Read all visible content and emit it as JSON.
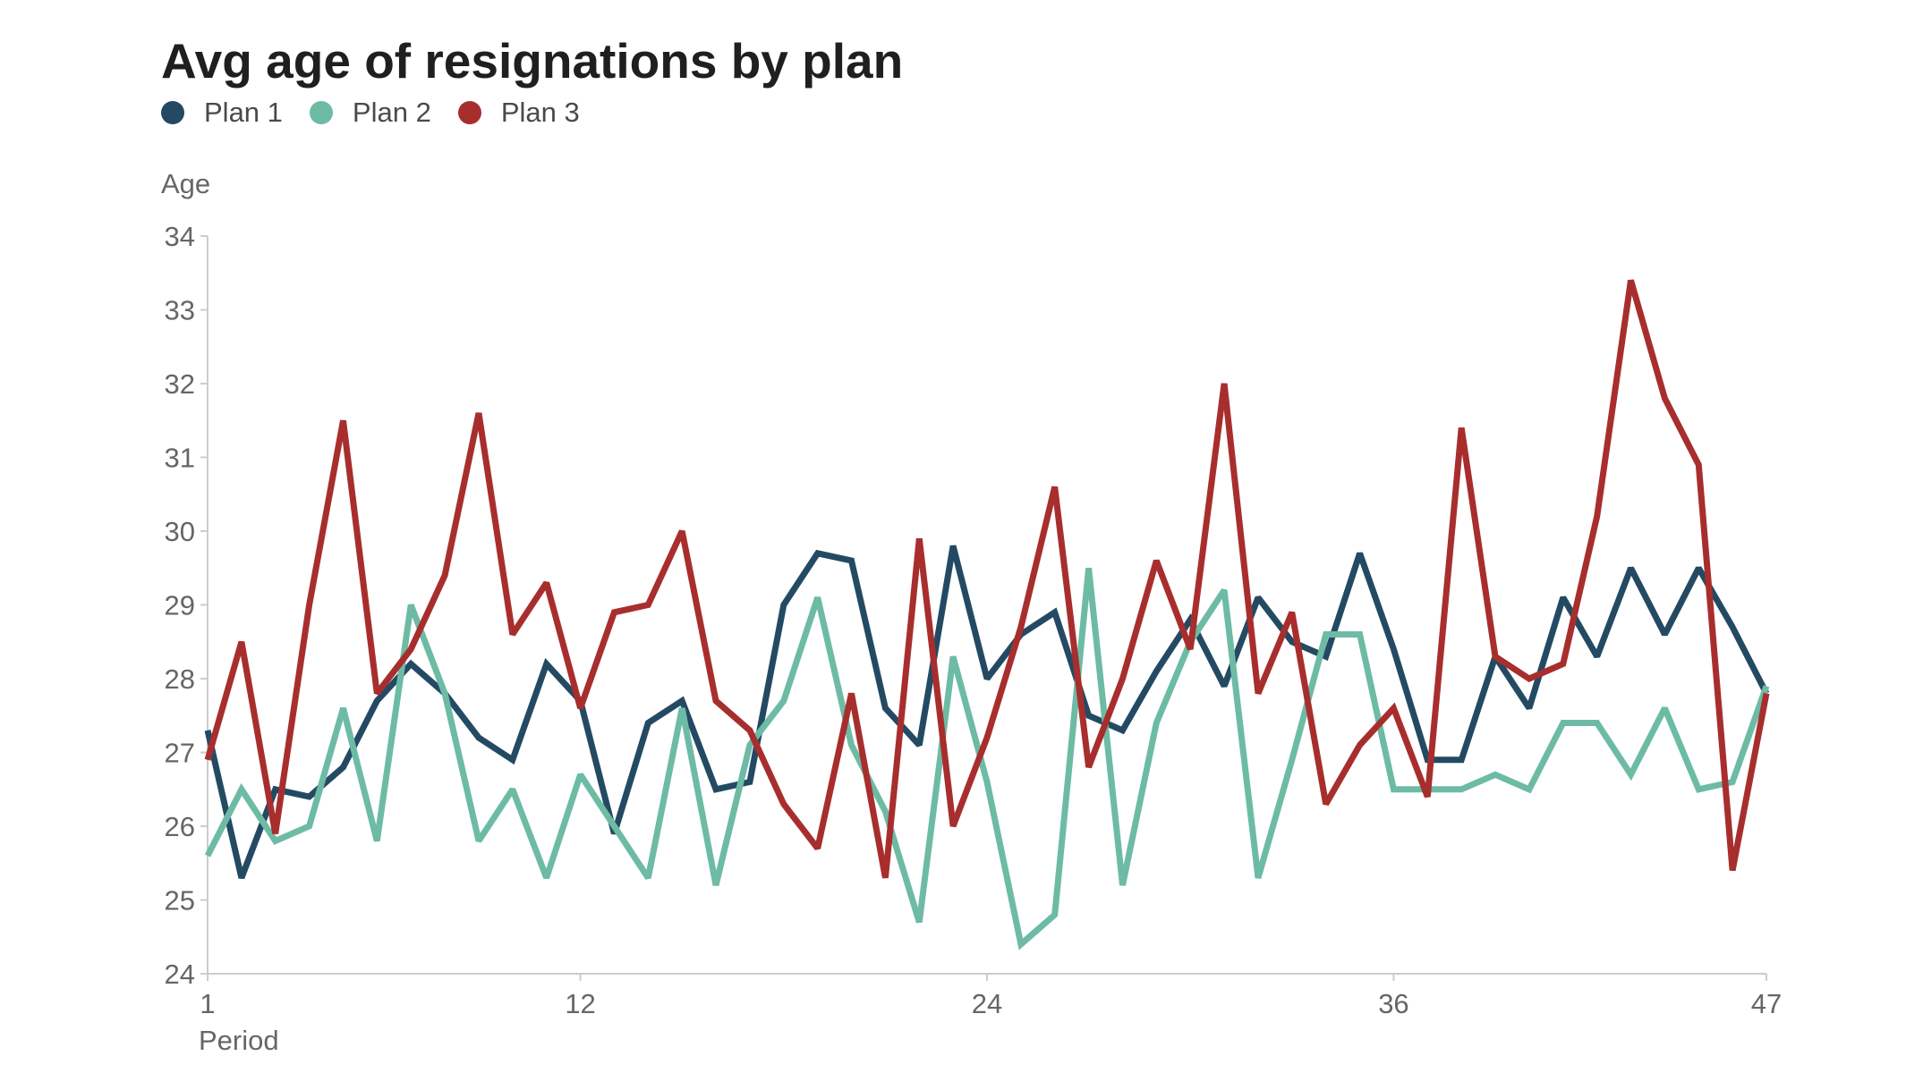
{
  "chart_data": {
    "type": "line",
    "title": "Avg age of resignations by plan",
    "xlabel": "Period",
    "ylabel": "Age",
    "x_ticks": [
      1,
      12,
      24,
      36,
      47
    ],
    "y_ticks": [
      24,
      25,
      26,
      27,
      28,
      29,
      30,
      31,
      32,
      33,
      34
    ],
    "xlim": [
      1,
      47
    ],
    "ylim": [
      24,
      34
    ],
    "legend_position": "top-left",
    "grid": false,
    "x": [
      1,
      2,
      3,
      4,
      5,
      6,
      7,
      8,
      9,
      10,
      11,
      12,
      13,
      14,
      15,
      16,
      17,
      18,
      19,
      20,
      21,
      22,
      23,
      24,
      25,
      26,
      27,
      28,
      29,
      30,
      31,
      32,
      33,
      34,
      35,
      36,
      37,
      38,
      39,
      40,
      41,
      42,
      43,
      44,
      45,
      46,
      47
    ],
    "series": [
      {
        "name": "Plan 1",
        "color": "#244a63",
        "values": [
          27.3,
          25.3,
          26.5,
          26.4,
          26.8,
          27.7,
          28.2,
          27.8,
          27.2,
          26.9,
          28.2,
          27.7,
          25.9,
          27.4,
          27.7,
          26.5,
          26.6,
          29.0,
          29.7,
          29.6,
          27.6,
          27.1,
          29.8,
          28.0,
          28.6,
          28.9,
          27.5,
          27.3,
          28.1,
          28.8,
          27.9,
          29.1,
          28.5,
          28.3,
          29.7,
          28.4,
          26.9,
          26.9,
          28.3,
          27.6,
          29.1,
          28.3,
          29.5,
          28.6,
          29.5,
          28.7,
          27.8
        ]
      },
      {
        "name": "Plan 2",
        "color": "#6dbba5",
        "values": [
          25.6,
          26.5,
          25.8,
          26.0,
          27.6,
          25.8,
          29.0,
          27.8,
          25.8,
          26.5,
          25.3,
          26.7,
          26.0,
          25.3,
          27.6,
          25.2,
          27.1,
          27.7,
          29.1,
          27.1,
          26.2,
          24.7,
          28.3,
          26.6,
          24.4,
          24.8,
          29.5,
          25.2,
          27.4,
          28.5,
          29.2,
          25.3,
          26.9,
          28.6,
          28.6,
          26.5,
          26.5,
          26.5,
          26.7,
          26.5,
          27.4,
          27.4,
          26.7,
          27.6,
          26.5,
          26.6,
          27.9
        ]
      },
      {
        "name": "Plan 3",
        "color": "#a82e2e",
        "values": [
          26.9,
          28.5,
          25.9,
          29.0,
          31.5,
          27.8,
          28.4,
          29.4,
          31.6,
          28.6,
          29.3,
          27.6,
          28.9,
          29.0,
          30.0,
          27.7,
          27.3,
          26.3,
          25.7,
          27.8,
          25.3,
          29.9,
          26.0,
          27.2,
          28.7,
          30.6,
          26.8,
          28.0,
          29.6,
          28.4,
          32.0,
          27.8,
          28.9,
          26.3,
          27.1,
          27.6,
          26.4,
          31.4,
          28.3,
          28.0,
          28.2,
          30.2,
          33.4,
          31.8,
          30.9,
          25.4,
          27.8
        ]
      }
    ]
  }
}
